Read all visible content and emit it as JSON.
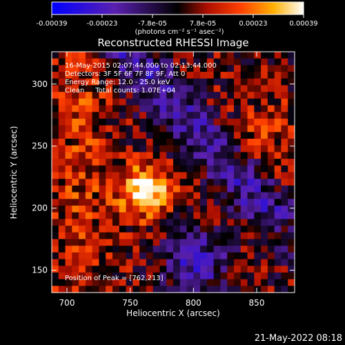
{
  "chart_data": {
    "type": "heatmap",
    "title": "Reconstructed RHESSI Image",
    "xlabel": "Heliocentric X (arcsec)",
    "ylabel": "Heliocentric Y (arcsec)",
    "xlim": [
      688,
      880
    ],
    "ylim": [
      132,
      326
    ],
    "x_ticks": [
      700,
      750,
      800,
      850
    ],
    "y_ticks": [
      150,
      200,
      250,
      300
    ],
    "colorbar": {
      "range": [
        -0.00039,
        0.00039
      ],
      "tick_labels": [
        "-0.00039",
        "-0.00023",
        "-7.8e-05",
        "7.8e-05",
        "0.00023",
        "0.00039"
      ],
      "label": "(photons cm⁻² s⁻¹ asec⁻²)",
      "colormap": "blue-purple-black-red-orange-yellow-white"
    },
    "annotations": {
      "time_range": "16-May-2015 02:07:44.000 to 02:13:44.000",
      "detectors": "Detectors: 3F 5F 6F 7F 8F 9F, Att 0",
      "energy": "Energy Range: 12.0 - 25.0 keV",
      "clean": "Clean     Total counts: 1.07E+04",
      "peak": "Position of Peak = [762,213]"
    },
    "peak_position": [
      762,
      213
    ],
    "grid": false
  },
  "footer": {
    "timestamp": "21-May-2022 08:18"
  }
}
